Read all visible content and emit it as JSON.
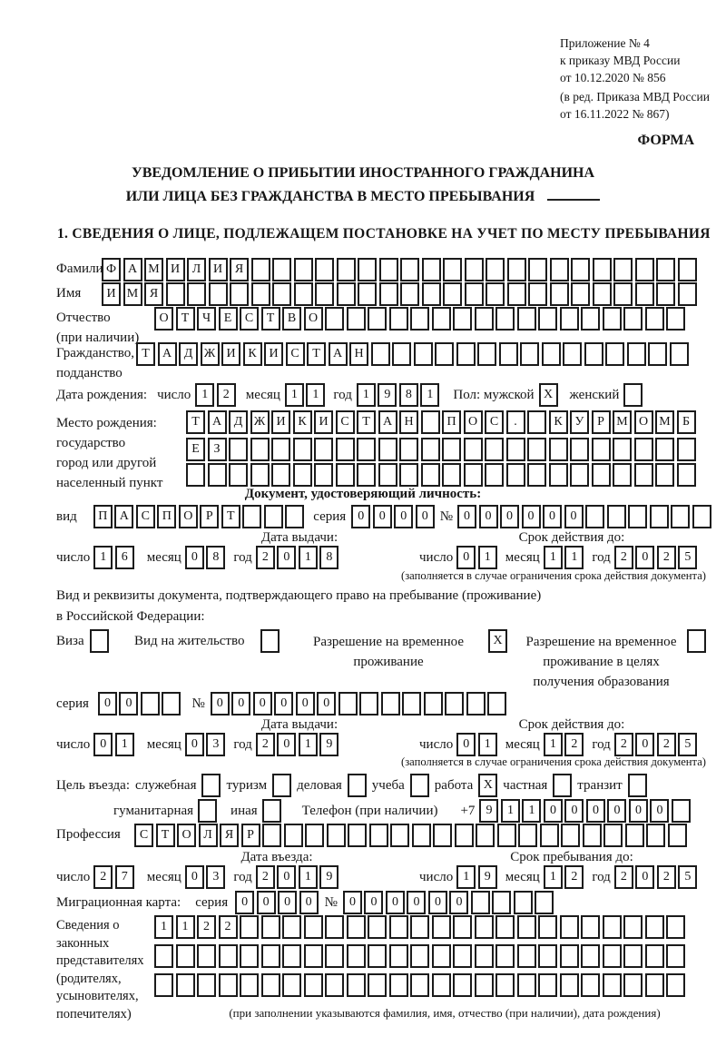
{
  "colors": {
    "ink": "#1b1b1b",
    "page": "#ffffff"
  },
  "header": {
    "annex": [
      "Приложение № 4",
      "к приказу МВД России",
      "от 10.12.2020 № 856"
    ],
    "edition": [
      "(в ред. Приказа МВД России",
      "от 16.11.2022 № 867)"
    ],
    "forma": "ФОРМА"
  },
  "title": {
    "line1": "УВЕДОМЛЕНИЕ О ПРИБЫТИИ ИНОСТРАННОГО ГРАЖДАНИНА",
    "line2": "ИЛИ ЛИЦА БЕЗ ГРАЖДАНСТВА В МЕСТО ПРЕБЫВАНИЯ"
  },
  "section1": {
    "heading": "1. СВЕДЕНИЯ О ЛИЦЕ, ПОДЛЕЖАЩЕМ ПОСТАНОВКЕ НА УЧЕТ ПО МЕСТУ ПРЕБЫВАНИЯ"
  },
  "labels": {
    "surname": "Фамилия",
    "name": "Имя",
    "patronymic": "Отчество",
    "patronymic_note": "(при наличии)",
    "citizenship1": "Гражданство,",
    "citizenship2": "подданство",
    "birth_date": "Дата рождения:",
    "day": "число",
    "month": "месяц",
    "year": "год",
    "sex_male": "Пол: мужской",
    "sex_female": "женский",
    "birthplace1": "Место рождения:",
    "birthplace2": "государство",
    "birthplace3": "город или другой",
    "birthplace4": "населенный пункт",
    "id_doc_header": "Документ, удостоверяющий личность:",
    "doc_kind": "вид",
    "series": "серия",
    "number_sign": "№",
    "issue_date": "Дата выдачи:",
    "valid_until": "Срок действия до:",
    "restriction_note": "(заполняется в случае ограничения срока действия документа)",
    "right_doc1": "Вид и реквизиты документа, подтверждающего право на пребывание (проживание)",
    "right_doc2": "в Российской Федерации:",
    "visa": "Виза",
    "residence_permit": "Вид на жительство",
    "temp_res1": "Разрешение на временное",
    "temp_res2": "проживание",
    "temp_edu1": "Разрешение на временное",
    "temp_edu2": "проживание в целях",
    "temp_edu3": "получения образования",
    "purpose": "Цель въезда:",
    "p_official": "служебная",
    "p_tourism": "туризм",
    "p_business": "деловая",
    "p_study": "учеба",
    "p_work": "работа",
    "p_private": "частная",
    "p_transit": "транзит",
    "p_humanitarian": "гуманитарная",
    "p_other": "иная",
    "phone_label": "Телефон (при наличии)",
    "phone_prefix": "+7",
    "profession": "Профессия",
    "entry_date": "Дата въезда:",
    "stay_until": "Срок пребывания до:",
    "migration_card": "Миграционная карта:",
    "rep_lines": [
      "Сведения о",
      "законных",
      "представителях",
      "(родителях,",
      "усыновителях,",
      "попечителях)"
    ],
    "rep_note": "(при заполнении указываются фамилия, имя, отчество (при наличии), дата рождения)"
  },
  "rows": {
    "surname": {
      "value": "ФАМИЛИЯ",
      "count": 28
    },
    "given_name": {
      "value": "ИМЯ",
      "count": 28
    },
    "patronymic": {
      "value": "ОТЧЕСТВО",
      "count": 25
    },
    "citizenship": {
      "value": "ТАДЖИКИСТАН",
      "count": 26
    },
    "birth_day": {
      "value": "12",
      "count": 2
    },
    "birth_month": {
      "value": "11",
      "count": 2
    },
    "birth_year": {
      "value": "1981",
      "count": 4
    },
    "sex_male": {
      "value": "X",
      "count": 1
    },
    "sex_female": {
      "value": "",
      "count": 1
    },
    "birthplace_1": {
      "value": "ТАДЖИКИСТАН ПОС. КУРМОМБ",
      "count": 24
    },
    "birthplace_2": {
      "value": "ЕЗ",
      "count": 24
    },
    "birthplace_3": {
      "value": "",
      "count": 24
    },
    "id_doc_kind": {
      "value": "ПАСПОРТ",
      "count": 10
    },
    "id_doc_series": {
      "value": "0000",
      "count": 4
    },
    "id_doc_number": {
      "value": "000000",
      "count": 12
    },
    "id_issue_day": {
      "value": "16",
      "count": 2
    },
    "id_issue_month": {
      "value": "08",
      "count": 2
    },
    "id_issue_year": {
      "value": "2018",
      "count": 4
    },
    "id_valid_day": {
      "value": "01",
      "count": 2
    },
    "id_valid_month": {
      "value": "11",
      "count": 2
    },
    "id_valid_year": {
      "value": "2025",
      "count": 4
    },
    "cb_visa": {
      "value": "",
      "count": 1
    },
    "cb_residence_permit": {
      "value": "",
      "count": 1
    },
    "cb_temp_residence": {
      "value": "X",
      "count": 1
    },
    "cb_temp_residence_edu": {
      "value": "",
      "count": 1
    },
    "permit_series": {
      "value": "00",
      "count": 4
    },
    "permit_number": {
      "value": "000000",
      "count": 14
    },
    "permit_issue_day": {
      "value": "01",
      "count": 2
    },
    "permit_issue_month": {
      "value": "03",
      "count": 2
    },
    "permit_issue_year": {
      "value": "2019",
      "count": 4
    },
    "permit_valid_day": {
      "value": "01",
      "count": 2
    },
    "permit_valid_month": {
      "value": "12",
      "count": 2
    },
    "permit_valid_year": {
      "value": "2025",
      "count": 4
    },
    "cb_official": {
      "value": "",
      "count": 1
    },
    "cb_tourism": {
      "value": "",
      "count": 1
    },
    "cb_business": {
      "value": "",
      "count": 1
    },
    "cb_study": {
      "value": "",
      "count": 1
    },
    "cb_work": {
      "value": "X",
      "count": 1
    },
    "cb_private": {
      "value": "",
      "count": 1
    },
    "cb_transit": {
      "value": "",
      "count": 1
    },
    "cb_humanitarian": {
      "value": "",
      "count": 1
    },
    "cb_other": {
      "value": "",
      "count": 1
    },
    "phone": {
      "value": "911000000",
      "count": 10
    },
    "profession": {
      "value": "СТОЛЯР",
      "count": 26
    },
    "entry_day": {
      "value": "27",
      "count": 2
    },
    "entry_month": {
      "value": "03",
      "count": 2
    },
    "entry_year": {
      "value": "2019",
      "count": 4
    },
    "stay_day": {
      "value": "19",
      "count": 2
    },
    "stay_month": {
      "value": "12",
      "count": 2
    },
    "stay_year": {
      "value": "2025",
      "count": 4
    },
    "mig_series": {
      "value": "0000",
      "count": 4
    },
    "mig_number": {
      "value": "000000",
      "count": 10
    },
    "rep_1": {
      "value": "1122",
      "count": 25
    },
    "rep_2": {
      "value": "",
      "count": 25
    },
    "rep_3": {
      "value": "",
      "count": 25
    }
  }
}
